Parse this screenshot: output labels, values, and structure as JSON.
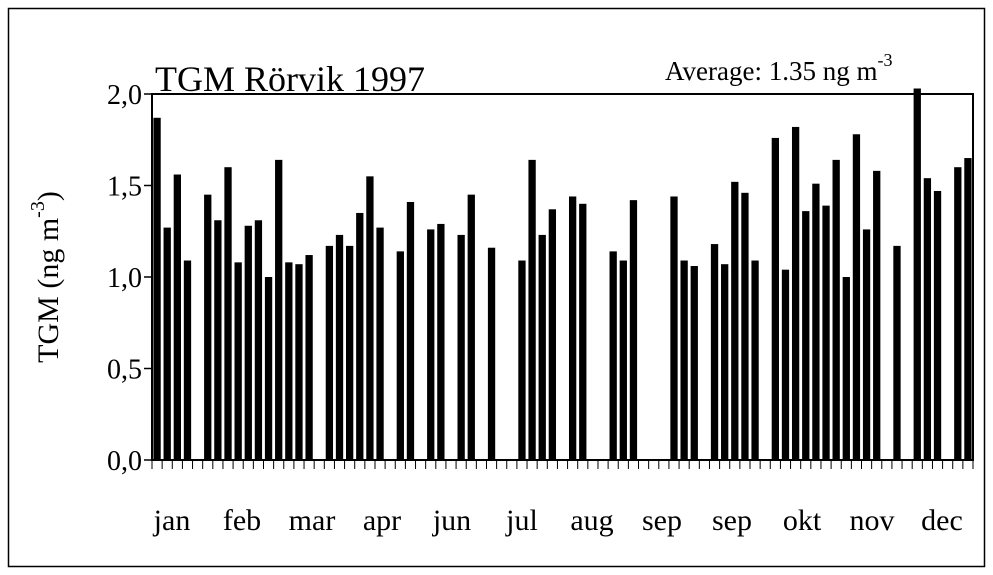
{
  "chart_data": {
    "type": "bar",
    "title": "TGM Rörvik 1997",
    "annotation": {
      "text": "Average:  1.35 ng m",
      "superscript": "-3"
    },
    "y_label": {
      "text": "TGM (ng m",
      "superscript": "-3",
      "suffix": ")"
    },
    "x_labels": [
      "jan",
      "feb",
      "mar",
      "apr",
      "jun",
      "jul",
      "aug",
      "sep",
      "sep",
      "okt",
      "nov",
      "dec"
    ],
    "color": "#000000",
    "ylim": [
      0,
      2
    ],
    "yticks": [
      {
        "value": 0,
        "label": "0,0"
      },
      {
        "value": 0.5,
        "label": "0,5"
      },
      {
        "value": 1,
        "label": "1,0"
      },
      {
        "value": 1.5,
        "label": "1,5"
      },
      {
        "value": 2,
        "label": "2,0"
      }
    ],
    "values": [
      1.87,
      1.27,
      1.56,
      1.09,
      null,
      1.45,
      1.31,
      1.6,
      1.08,
      1.28,
      1.31,
      1.0,
      1.64,
      1.08,
      1.07,
      1.12,
      null,
      1.17,
      1.23,
      1.17,
      1.35,
      1.55,
      1.27,
      null,
      1.14,
      1.41,
      null,
      1.26,
      1.29,
      null,
      1.23,
      1.45,
      null,
      1.16,
      null,
      null,
      1.09,
      1.64,
      1.23,
      1.37,
      null,
      1.44,
      1.4,
      null,
      null,
      1.14,
      1.09,
      1.42,
      null,
      null,
      null,
      1.44,
      1.09,
      1.06,
      null,
      1.18,
      1.07,
      1.52,
      1.46,
      1.09,
      null,
      1.76,
      1.04,
      1.82,
      1.36,
      1.51,
      1.39,
      1.64,
      1.0,
      1.78,
      1.26,
      1.58,
      null,
      1.17,
      null,
      2.03,
      1.54,
      1.47,
      null,
      1.6,
      1.65
    ]
  }
}
